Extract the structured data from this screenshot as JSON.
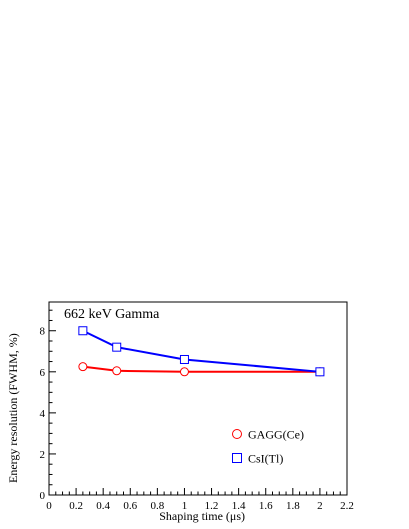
{
  "chart_data": {
    "type": "line",
    "annotation": "662 keV Gamma",
    "xlabel": "Shaping time (μs)",
    "ylabel": "Energy resolution (FWHM, %)",
    "xlim": [
      0,
      2.2
    ],
    "ylim": [
      0,
      9.4
    ],
    "x_ticks": [
      "0",
      "0.2",
      "0.4",
      "0.6",
      "0.8",
      "1",
      "1.2",
      "1.4",
      "1.6",
      "1.8",
      "2",
      "2.2"
    ],
    "y_ticks": [
      "0",
      "2",
      "4",
      "6",
      "8"
    ],
    "grid": false,
    "legend_position": "bottom-right",
    "series": [
      {
        "name": "GAGG(Ce)",
        "marker": "circle",
        "color": "#ff0000",
        "x": [
          0.25,
          0.5,
          1,
          2
        ],
        "y": [
          6.25,
          6.05,
          6.0,
          6.0
        ]
      },
      {
        "name": "CsI(Tl)",
        "marker": "square",
        "color": "#0000ff",
        "x": [
          0.25,
          0.5,
          1,
          2
        ],
        "y": [
          8.0,
          7.2,
          6.6,
          6.0
        ]
      }
    ]
  }
}
